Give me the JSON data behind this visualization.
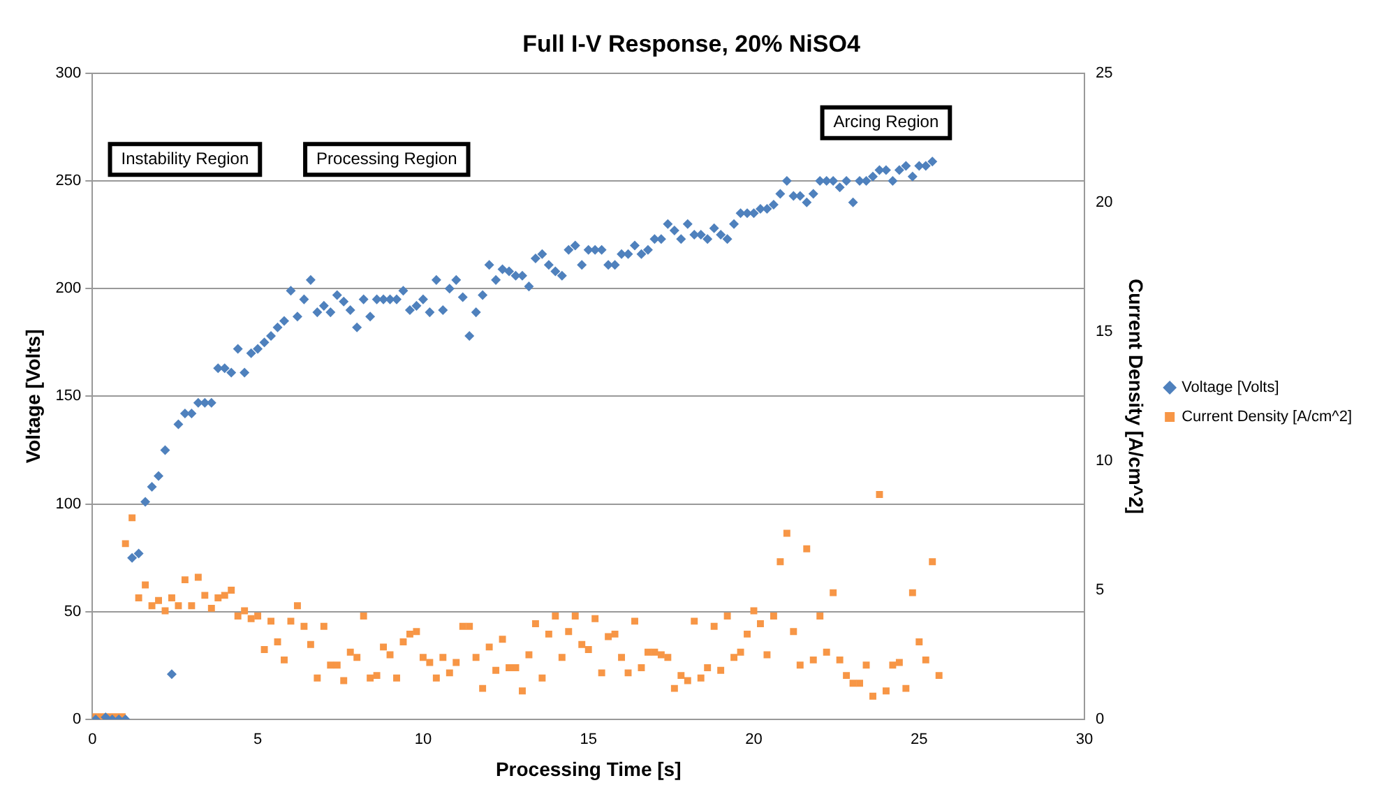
{
  "chart_data": {
    "type": "scatter",
    "title": "Full I-V Response, 20% NiSO4",
    "xlabel": "Processing Time [s]",
    "ylabel": "Voltage [Volts]",
    "y2label": "Current Density [A/cm^2]",
    "annotations": [
      "Instability Region",
      "Processing Region",
      "Arcing Region"
    ],
    "xlim": [
      0,
      30
    ],
    "xticks": [
      0,
      5,
      10,
      15,
      20,
      25,
      30
    ],
    "ylim": [
      0,
      300
    ],
    "yticks": [
      0,
      50,
      100,
      150,
      200,
      250,
      300
    ],
    "y2lim": [
      0,
      25
    ],
    "y2ticks": [
      0,
      5,
      10,
      15,
      20,
      25
    ],
    "grid": "y",
    "legend": "right",
    "series": [
      {
        "name": "Voltage [Volts]",
        "color": "#4f81bd",
        "marker": "diamond",
        "x": [
          0.1,
          0.4,
          0.6,
          0.8,
          1.0,
          1.2,
          1.4,
          1.6,
          1.8,
          2.0,
          2.2,
          2.4,
          2.6,
          2.8,
          3.0,
          3.2,
          3.4,
          3.6,
          3.8,
          4.0,
          4.2,
          4.4,
          4.6,
          4.8,
          5.0,
          5.2,
          5.4,
          5.6,
          5.8,
          6.0,
          6.2,
          6.4,
          6.6,
          6.8,
          7.0,
          7.2,
          7.4,
          7.6,
          7.8,
          8.0,
          8.2,
          8.4,
          8.6,
          8.8,
          9.0,
          9.2,
          9.4,
          9.6,
          9.8,
          10.0,
          10.2,
          10.4,
          10.6,
          10.8,
          11.0,
          11.2,
          11.4,
          11.6,
          11.8,
          12.0,
          12.2,
          12.4,
          12.6,
          12.8,
          13.0,
          13.2,
          13.4,
          13.6,
          13.8,
          14.0,
          14.2,
          14.4,
          14.6,
          14.8,
          15.0,
          15.2,
          15.4,
          15.6,
          15.8,
          16.0,
          16.2,
          16.4,
          16.6,
          16.8,
          17.0,
          17.2,
          17.4,
          17.6,
          17.8,
          18.0,
          18.2,
          18.4,
          18.6,
          18.8,
          19.0,
          19.2,
          19.4,
          19.6,
          19.8,
          20.0,
          20.2,
          20.4,
          20.6,
          20.8,
          21.0,
          21.2,
          21.4,
          21.6,
          21.8,
          22.0,
          22.2,
          22.4,
          22.6,
          22.8,
          23.0,
          23.2,
          23.4,
          23.6,
          23.8,
          24.0,
          24.2,
          24.4,
          24.6,
          24.8,
          25.0,
          25.2,
          25.4
        ],
        "values": [
          0,
          1,
          0,
          0,
          0,
          75,
          77,
          101,
          108,
          113,
          125,
          21,
          137,
          142,
          142,
          147,
          147,
          147,
          163,
          163,
          161,
          172,
          161,
          170,
          172,
          175,
          178,
          182,
          185,
          199,
          187,
          195,
          204,
          189,
          192,
          189,
          197,
          194,
          190,
          182,
          195,
          187,
          195,
          195,
          195,
          195,
          199,
          190,
          192,
          195,
          189,
          204,
          190,
          200,
          204,
          196,
          178,
          189,
          197,
          211,
          204,
          209,
          208,
          206,
          206,
          201,
          214,
          216,
          211,
          208,
          206,
          218,
          220,
          211,
          218,
          218,
          218,
          211,
          211,
          216,
          216,
          220,
          216,
          218,
          223,
          223,
          230,
          227,
          223,
          230,
          225,
          225,
          223,
          228,
          225,
          223,
          230,
          235,
          235,
          235,
          237,
          237,
          239,
          244,
          250,
          243,
          243,
          240,
          244,
          250,
          250,
          250,
          247,
          250,
          240,
          250,
          250,
          252,
          255,
          255,
          250,
          255,
          257,
          252,
          257,
          257,
          259
        ]
      },
      {
        "name": "Current Density [A/cm^2]",
        "color": "#f79646",
        "marker": "square",
        "axis": "y2",
        "x": [
          0.1,
          0.3,
          0.5,
          0.7,
          0.9,
          1.0,
          1.2,
          1.4,
          1.6,
          1.8,
          2.0,
          2.2,
          2.4,
          2.6,
          2.8,
          3.0,
          3.2,
          3.4,
          3.6,
          3.8,
          4.0,
          4.2,
          4.4,
          4.6,
          4.8,
          5.0,
          5.2,
          5.4,
          5.6,
          5.8,
          6.0,
          6.2,
          6.4,
          6.6,
          6.8,
          7.0,
          7.2,
          7.4,
          7.6,
          7.8,
          8.0,
          8.2,
          8.4,
          8.6,
          8.8,
          9.0,
          9.2,
          9.4,
          9.6,
          9.8,
          10.0,
          10.2,
          10.4,
          10.6,
          10.8,
          11.0,
          11.2,
          11.4,
          11.6,
          11.8,
          12.0,
          12.2,
          12.4,
          12.6,
          12.8,
          13.0,
          13.2,
          13.4,
          13.6,
          13.8,
          14.0,
          14.2,
          14.4,
          14.6,
          14.8,
          15.0,
          15.2,
          15.4,
          15.6,
          15.8,
          16.0,
          16.2,
          16.4,
          16.6,
          16.8,
          17.0,
          17.2,
          17.4,
          17.6,
          17.8,
          18.0,
          18.2,
          18.4,
          18.6,
          18.8,
          19.0,
          19.2,
          19.4,
          19.6,
          19.8,
          20.0,
          20.2,
          20.4,
          20.6,
          20.8,
          21.0,
          21.2,
          21.4,
          21.6,
          21.8,
          22.0,
          22.2,
          22.4,
          22.6,
          22.8,
          23.0,
          23.2,
          23.4,
          23.6,
          23.8,
          24.0,
          24.2,
          24.4,
          24.6,
          24.8,
          25.0,
          25.2,
          25.4,
          25.6
        ],
        "values": [
          0.1,
          0.1,
          0.1,
          0.1,
          0.1,
          6.8,
          7.8,
          4.7,
          5.2,
          4.4,
          4.6,
          4.2,
          4.7,
          4.4,
          5.4,
          4.4,
          5.5,
          4.8,
          4.3,
          4.7,
          4.8,
          5.0,
          4.0,
          4.2,
          3.9,
          4.0,
          2.7,
          3.8,
          3.0,
          2.3,
          3.8,
          4.4,
          3.6,
          2.9,
          1.6,
          3.6,
          2.1,
          2.1,
          1.5,
          2.6,
          2.4,
          4.0,
          1.6,
          1.7,
          2.8,
          2.5,
          1.6,
          3.0,
          3.3,
          3.4,
          2.4,
          2.2,
          1.6,
          2.4,
          1.8,
          2.2,
          3.6,
          3.6,
          2.4,
          1.2,
          2.8,
          1.9,
          3.1,
          2.0,
          2.0,
          1.1,
          2.5,
          3.7,
          1.6,
          3.3,
          4.0,
          2.4,
          3.4,
          4.0,
          2.9,
          2.7,
          3.9,
          1.8,
          3.2,
          3.3,
          2.4,
          1.8,
          3.8,
          2.0,
          2.6,
          2.6,
          2.5,
          2.4,
          1.2,
          1.7,
          1.5,
          3.8,
          1.6,
          2.0,
          3.6,
          1.9,
          4.0,
          2.4,
          2.6,
          3.3,
          4.2,
          3.7,
          2.5,
          4.0,
          6.1,
          7.2,
          3.4,
          2.1,
          6.6,
          2.3,
          4.0,
          2.6,
          4.9,
          2.3,
          1.7,
          1.4,
          1.4,
          2.1,
          0.9,
          8.7,
          1.1,
          2.1,
          2.2,
          1.2,
          4.9,
          3.0,
          2.3,
          6.1,
          1.7
        ]
      }
    ]
  }
}
